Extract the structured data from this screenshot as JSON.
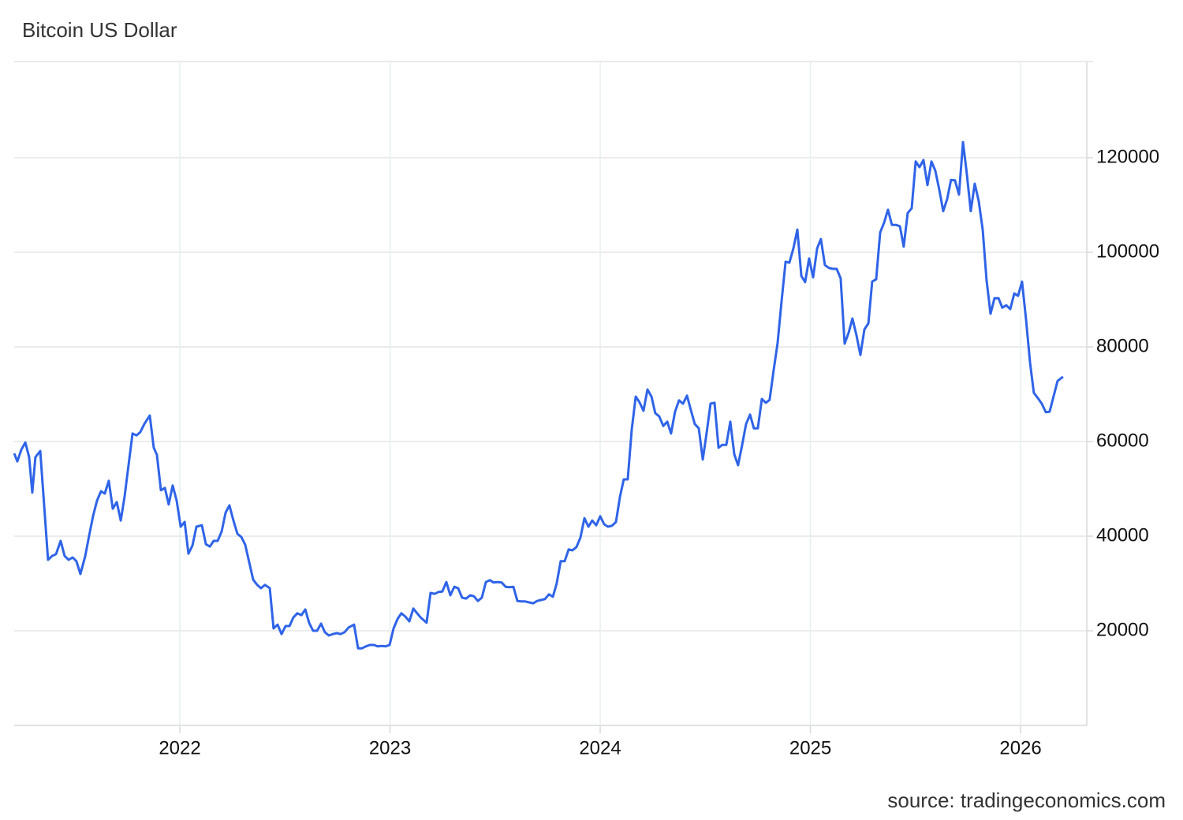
{
  "chart_data": {
    "type": "line",
    "title": "Bitcoin US Dollar",
    "source": "source: tradingeconomics.com",
    "color": "#2f64e8",
    "grid": true,
    "xlim": [
      2021.212,
      2026.315
    ],
    "xticks": [
      2022,
      2023,
      2024,
      2025,
      2026
    ],
    "ylim": [
      0,
      140000
    ],
    "yticks": [
      20000,
      40000,
      60000,
      80000,
      100000,
      120000
    ],
    "x": [
      2021.212,
      2021.227,
      2021.246,
      2021.265,
      2021.283,
      2021.298,
      2021.313,
      2021.336,
      2021.373,
      2021.392,
      2021.411,
      2021.433,
      2021.452,
      2021.471,
      2021.49,
      2021.508,
      2021.527,
      2021.55,
      2021.568,
      2021.587,
      2021.606,
      2021.625,
      2021.643,
      2021.662,
      2021.681,
      2021.7,
      2021.719,
      2021.737,
      2021.756,
      2021.775,
      2021.794,
      2021.812,
      2021.831,
      2021.857,
      2021.876,
      2021.891,
      2021.91,
      2021.929,
      2021.947,
      2021.966,
      2021.985,
      2022.004,
      2022.023,
      2022.041,
      2022.06,
      2022.079,
      2022.105,
      2022.124,
      2022.143,
      2022.161,
      2022.18,
      2022.199,
      2022.218,
      2022.236,
      2022.255,
      2022.274,
      2022.293,
      2022.311,
      2022.33,
      2022.349,
      2022.368,
      2022.386,
      2022.405,
      2022.428,
      2022.446,
      2022.465,
      2022.484,
      2022.503,
      2022.522,
      2022.54,
      2022.559,
      2022.578,
      2022.597,
      2022.615,
      2022.634,
      2022.653,
      2022.672,
      2022.69,
      2022.709,
      2022.728,
      2022.747,
      2022.765,
      2022.784,
      2022.803,
      2022.829,
      2022.848,
      2022.867,
      2022.885,
      2022.904,
      2022.923,
      2022.942,
      2022.961,
      2022.979,
      2022.998,
      2023.017,
      2023.036,
      2023.054,
      2023.073,
      2023.092,
      2023.111,
      2023.129,
      2023.148,
      2023.174,
      2023.193,
      2023.212,
      2023.231,
      2023.249,
      2023.268,
      2023.287,
      2023.306,
      2023.324,
      2023.343,
      2023.362,
      2023.381,
      2023.399,
      2023.418,
      2023.437,
      2023.456,
      2023.475,
      2023.493,
      2023.512,
      2023.531,
      2023.55,
      2023.568,
      2023.587,
      2023.606,
      2023.625,
      2023.643,
      2023.662,
      2023.681,
      2023.7,
      2023.718,
      2023.737,
      2023.756,
      2023.775,
      2023.793,
      2023.812,
      2023.831,
      2023.85,
      2023.868,
      2023.887,
      2023.906,
      2023.925,
      2023.944,
      2023.962,
      2023.981,
      2024.0,
      2024.019,
      2024.037,
      2024.056,
      2024.075,
      2024.094,
      2024.112,
      2024.131,
      2024.15,
      2024.169,
      2024.187,
      2024.206,
      2024.225,
      2024.244,
      2024.262,
      2024.281,
      2024.3,
      2024.319,
      2024.337,
      2024.356,
      2024.375,
      2024.394,
      2024.413,
      2024.431,
      2024.45,
      2024.469,
      2024.488,
      2024.506,
      2024.525,
      2024.544,
      2024.563,
      2024.581,
      2024.6,
      2024.619,
      2024.638,
      2024.656,
      2024.675,
      2024.694,
      2024.713,
      2024.731,
      2024.75,
      2024.769,
      2024.788,
      2024.806,
      2024.825,
      2024.844,
      2024.863,
      2024.882,
      2024.9,
      2024.919,
      2024.938,
      2024.957,
      2024.975,
      2024.994,
      2025.013,
      2025.032,
      2025.05,
      2025.069,
      2025.088,
      2025.107,
      2025.125,
      2025.144,
      2025.163,
      2025.182,
      2025.2,
      2025.219,
      2025.238,
      2025.257,
      2025.276,
      2025.294,
      2025.313,
      2025.332,
      2025.351,
      2025.369,
      2025.388,
      2025.407,
      2025.426,
      2025.444,
      2025.463,
      2025.482,
      2025.501,
      2025.519,
      2025.538,
      2025.557,
      2025.576,
      2025.594,
      2025.613,
      2025.632,
      2025.651,
      2025.669,
      2025.688,
      2025.707,
      2025.726,
      2025.744,
      2025.763,
      2025.782,
      2025.801,
      2025.82,
      2025.838,
      2025.857,
      2025.876,
      2025.895,
      2025.913,
      2025.932,
      2025.951,
      2025.97,
      2025.988,
      2026.007,
      2026.026,
      2026.045,
      2026.063,
      2026.082,
      2026.101,
      2026.12,
      2026.138,
      2026.176,
      2026.202
    ],
    "values": [
      57500,
      55800,
      58300,
      59800,
      56700,
      49200,
      56700,
      58000,
      35000,
      35800,
      36200,
      39000,
      35800,
      35000,
      35500,
      34700,
      32000,
      35800,
      40000,
      44200,
      47500,
      49500,
      49000,
      51700,
      45800,
      47200,
      43300,
      48300,
      55000,
      61700,
      61300,
      62000,
      63700,
      65500,
      58700,
      57200,
      49700,
      50200,
      46700,
      50700,
      47500,
      42000,
      43000,
      36300,
      38000,
      42000,
      42300,
      38300,
      37800,
      39000,
      39000,
      41000,
      45000,
      46500,
      43300,
      40500,
      39800,
      38200,
      34500,
      30800,
      29700,
      29000,
      29700,
      29000,
      20500,
      21300,
      19300,
      21000,
      21000,
      22800,
      23700,
      23300,
      24500,
      21700,
      20000,
      20000,
      21500,
      19700,
      19000,
      19300,
      19500,
      19300,
      19700,
      20700,
      21300,
      16300,
      16300,
      16700,
      17000,
      17000,
      16700,
      16800,
      16700,
      17000,
      20500,
      22500,
      23700,
      23000,
      22000,
      24700,
      23700,
      22700,
      21700,
      28000,
      27800,
      28200,
      28300,
      30300,
      27500,
      29300,
      29000,
      27000,
      26800,
      27500,
      27300,
      26300,
      27000,
      30300,
      30700,
      30200,
      30300,
      30200,
      29300,
      29200,
      29300,
      26300,
      26200,
      26200,
      26000,
      25800,
      26300,
      26500,
      26700,
      27700,
      27200,
      30000,
      34700,
      34700,
      37200,
      37000,
      37700,
      39700,
      43800,
      42000,
      43300,
      42300,
      44200,
      42500,
      42000,
      42200,
      43000,
      48300,
      52000,
      52000,
      62500,
      69500,
      68300,
      66500,
      71000,
      69500,
      66000,
      65300,
      63300,
      64200,
      61700,
      66300,
      68700,
      68000,
      69700,
      66700,
      63700,
      62800,
      56200,
      61700,
      68000,
      68200,
      58700,
      59300,
      59300,
      64200,
      57300,
      55000,
      59200,
      63700,
      65700,
      62800,
      62800,
      69000,
      68200,
      68800,
      75000,
      80800,
      89700,
      98000,
      97800,
      100800,
      104800,
      95000,
      93700,
      98700,
      94700,
      100800,
      102800,
      97300,
      96700,
      96500,
      96500,
      94500,
      80700,
      83000,
      86000,
      82500,
      78300,
      83700,
      85000,
      93800,
      94300,
      104200,
      106300,
      109000,
      105800,
      105800,
      105500,
      101200,
      108300,
      109300,
      119200,
      118000,
      119500,
      114200,
      119200,
      117300,
      113300,
      108700,
      111300,
      115300,
      115200,
      112200,
      123300,
      116700,
      108700,
      114500,
      110800,
      104700,
      94200,
      87000,
      90300,
      90300,
      88300,
      88800,
      88000,
      91300,
      90800,
      93800,
      85800,
      76700,
      70300,
      69200,
      68000,
      66200,
      66300,
      72800,
      73700
    ]
  }
}
